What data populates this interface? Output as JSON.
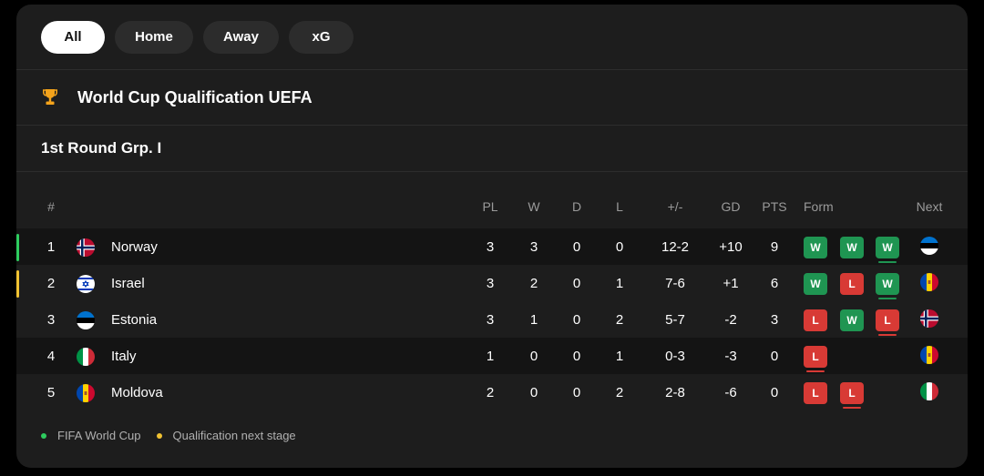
{
  "filters": [
    {
      "label": "All",
      "active": true
    },
    {
      "label": "Home",
      "active": false
    },
    {
      "label": "Away",
      "active": false
    },
    {
      "label": "xG",
      "active": false
    }
  ],
  "league": {
    "title": "World Cup Qualification UEFA",
    "icon": "trophy-icon"
  },
  "group": {
    "title": "1st Round Grp. I"
  },
  "columns": {
    "rank": "#",
    "pl": "PL",
    "w": "W",
    "d": "D",
    "l": "L",
    "score": "+/-",
    "gd": "GD",
    "pts": "PTS",
    "form": "Form",
    "next": "Next"
  },
  "rows": [
    {
      "rank": "1",
      "team": "Norway",
      "flag": "norway-flag-icon",
      "pl": "3",
      "w": "3",
      "d": "0",
      "l": "0",
      "score": "12-2",
      "gd": "+10",
      "pts": "9",
      "form": [
        "W",
        "W",
        "W"
      ],
      "next": "estonia-flag-icon",
      "zone": "qualified"
    },
    {
      "rank": "2",
      "team": "Israel",
      "flag": "israel-flag-icon",
      "pl": "3",
      "w": "2",
      "d": "0",
      "l": "1",
      "score": "7-6",
      "gd": "+1",
      "pts": "6",
      "form": [
        "W",
        "L",
        "W"
      ],
      "next": "moldova-flag-icon",
      "zone": "next-stage"
    },
    {
      "rank": "3",
      "team": "Estonia",
      "flag": "estonia-flag-icon",
      "pl": "3",
      "w": "1",
      "d": "0",
      "l": "2",
      "score": "5-7",
      "gd": "-2",
      "pts": "3",
      "form": [
        "L",
        "W",
        "L"
      ],
      "next": "norway-flag-icon",
      "zone": ""
    },
    {
      "rank": "4",
      "team": "Italy",
      "flag": "italy-flag-icon",
      "pl": "1",
      "w": "0",
      "d": "0",
      "l": "1",
      "score": "0-3",
      "gd": "-3",
      "pts": "0",
      "form": [
        "L"
      ],
      "next": "moldova-flag-icon",
      "zone": ""
    },
    {
      "rank": "5",
      "team": "Moldova",
      "flag": "moldova-flag-icon",
      "pl": "2",
      "w": "0",
      "d": "0",
      "l": "2",
      "score": "2-8",
      "gd": "-6",
      "pts": "0",
      "form": [
        "L",
        "L"
      ],
      "next": "italy-flag-icon",
      "zone": ""
    }
  ],
  "legend": [
    {
      "label": "FIFA World Cup",
      "color": "#2ecc5f"
    },
    {
      "label": "Qualification next stage",
      "color": "#f1c232"
    }
  ],
  "colors": {
    "win": "#1f9552",
    "loss": "#d83a35",
    "qualified": "#2ecc5f",
    "next_stage": "#f1c232"
  }
}
